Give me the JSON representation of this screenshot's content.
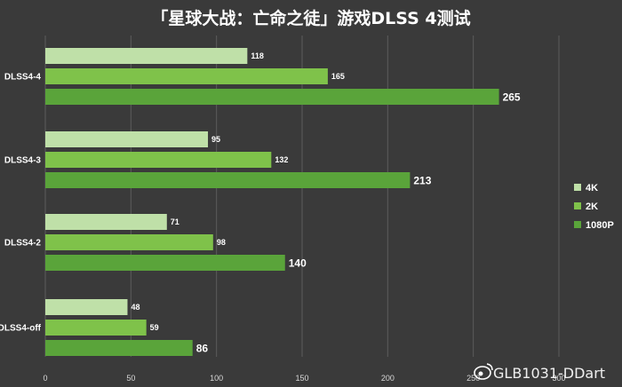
{
  "chart_data": {
    "type": "bar",
    "orientation": "horizontal",
    "title": "「星球大战：亡命之徒」游戏DLSS 4测试",
    "categories": [
      "DLSS4-4",
      "DLSS4-3",
      "DLSS4-2",
      "DLSS4-off"
    ],
    "series": [
      {
        "name": "4K",
        "values": [
          118,
          95,
          71,
          48
        ],
        "color": "#bfe0a8"
      },
      {
        "name": "2K",
        "values": [
          165,
          132,
          98,
          59
        ],
        "color": "#7fc24a"
      },
      {
        "name": "1080P",
        "values": [
          265,
          213,
          140,
          86
        ],
        "color": "#5aa43a"
      }
    ],
    "xlim": [
      0,
      300
    ],
    "xticks": [
      0,
      50,
      100,
      150,
      200,
      250,
      300
    ],
    "grid": true,
    "legend_position": "right"
  },
  "watermark": "GLB1031-DDart"
}
